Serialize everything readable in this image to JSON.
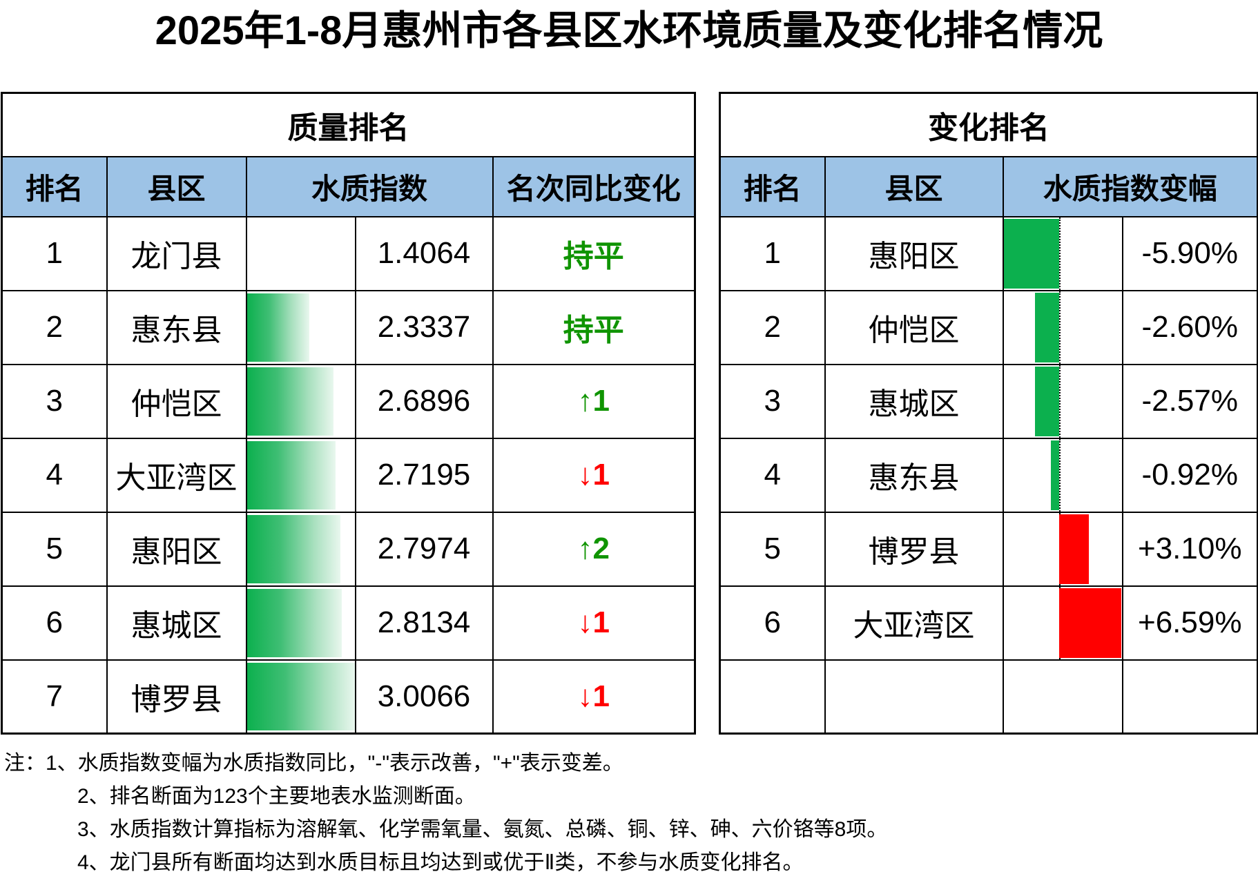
{
  "title": "2025年1-8月惠州市各县区水环境质量及变化排名情况",
  "colors": {
    "header_bg": "#9DC3E6",
    "bar_green": "#0CB04E",
    "bar_green_fade": "#E9F7EE",
    "bar_red": "#FF0000",
    "text_green": "#0F9400",
    "text_red": "#FF0000",
    "border": "#000000"
  },
  "left_table": {
    "section_title": "质量排名",
    "headers": {
      "rank": "排名",
      "district": "县区",
      "index": "水质指数",
      "change": "名次同比变化"
    },
    "rows": [
      {
        "rank": "1",
        "district": "龙门县",
        "index": "1.4064",
        "change": "持平",
        "change_dir": "flat"
      },
      {
        "rank": "2",
        "district": "惠东县",
        "index": "2.3337",
        "change": "持平",
        "change_dir": "flat"
      },
      {
        "rank": "3",
        "district": "仲恺区",
        "index": "2.6896",
        "change": "↑1",
        "change_dir": "up"
      },
      {
        "rank": "4",
        "district": "大亚湾区",
        "index": "2.7195",
        "change": "↓1",
        "change_dir": "down"
      },
      {
        "rank": "5",
        "district": "惠阳区",
        "index": "2.7974",
        "change": "↑2",
        "change_dir": "up"
      },
      {
        "rank": "6",
        "district": "惠城区",
        "index": "2.8134",
        "change": "↓1",
        "change_dir": "down"
      },
      {
        "rank": "7",
        "district": "博罗县",
        "index": "3.0066",
        "change": "↓1",
        "change_dir": "down"
      }
    ]
  },
  "right_table": {
    "section_title": "变化排名",
    "headers": {
      "rank": "排名",
      "district": "县区",
      "change": "水质指数变幅"
    },
    "rows": [
      {
        "rank": "1",
        "district": "惠阳区",
        "change_pct": "-5.90%",
        "value": -5.9
      },
      {
        "rank": "2",
        "district": "仲恺区",
        "change_pct": "-2.60%",
        "value": -2.6
      },
      {
        "rank": "3",
        "district": "惠城区",
        "change_pct": "-2.57%",
        "value": -2.57
      },
      {
        "rank": "4",
        "district": "惠东县",
        "change_pct": "-0.92%",
        "value": -0.92
      },
      {
        "rank": "5",
        "district": "博罗县",
        "change_pct": "+3.10%",
        "value": 3.1
      },
      {
        "rank": "6",
        "district": "大亚湾区",
        "change_pct": "+6.59%",
        "value": 6.59
      },
      {
        "rank": "",
        "district": "",
        "change_pct": "",
        "value": null
      }
    ]
  },
  "notes": [
    "注：1、水质指数变幅为水质指数同比，\"-\"表示改善，\"+\"表示变差。",
    "2、排名断面为123个主要地表水监测断面。",
    "3、水质指数计算指标为溶解氧、化学需氧量、氨氮、总磷、铜、锌、砷、六价铬等8项。",
    "4、龙门县所有断面均达到水质目标且均达到或优于Ⅱ类，不参与水质变化排名。"
  ],
  "chart_data": [
    {
      "type": "table",
      "title": "质量排名",
      "columns": [
        "排名",
        "县区",
        "水质指数",
        "名次同比变化"
      ],
      "rows": [
        [
          1,
          "龙门县",
          1.4064,
          "持平"
        ],
        [
          2,
          "惠东县",
          2.3337,
          "持平"
        ],
        [
          3,
          "仲恺区",
          2.6896,
          "↑1"
        ],
        [
          4,
          "大亚湾区",
          2.7195,
          "↓1"
        ],
        [
          5,
          "惠阳区",
          2.7974,
          "↑2"
        ],
        [
          6,
          "惠城区",
          2.8134,
          "↓1"
        ],
        [
          7,
          "博罗县",
          3.0066,
          "↓1"
        ]
      ],
      "databar": {
        "column": "水质指数",
        "min": 1.4064,
        "max": 3.0066,
        "style": "green-gradient-left-to-right"
      }
    },
    {
      "type": "table",
      "title": "变化排名",
      "columns": [
        "排名",
        "县区",
        "水质指数变幅"
      ],
      "rows": [
        [
          1,
          "惠阳区",
          -5.9
        ],
        [
          2,
          "仲恺区",
          -2.6
        ],
        [
          3,
          "惠城区",
          -2.57
        ],
        [
          4,
          "惠东县",
          -0.92
        ],
        [
          5,
          "博罗县",
          3.1
        ],
        [
          6,
          "大亚湾区",
          6.59
        ]
      ],
      "databar": {
        "column": "水质指数变幅",
        "axis": 0,
        "negative_color": "green",
        "positive_color": "red",
        "axis_style": "dotted"
      }
    }
  ]
}
